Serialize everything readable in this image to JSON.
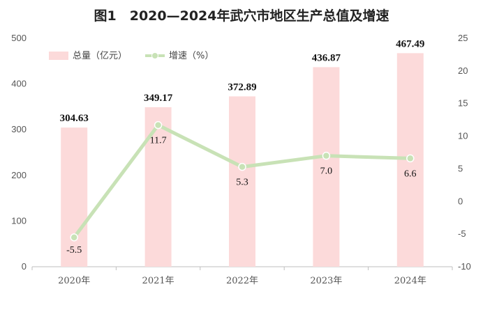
{
  "title": "图1　2020—2024年武穴市地区生产总值及增速",
  "chart_data": {
    "type": "bar",
    "categories": [
      "2020年",
      "2021年",
      "2022年",
      "2023年",
      "2024年"
    ],
    "series": [
      {
        "name": "总量（亿元）",
        "type": "bar",
        "axis": "left",
        "values": [
          304.63,
          349.17,
          372.89,
          436.87,
          467.49
        ],
        "labels": [
          "304.63",
          "349.17",
          "372.89",
          "436.87",
          "467.49"
        ]
      },
      {
        "name": "增速（%）",
        "type": "line",
        "axis": "right",
        "values": [
          -5.5,
          11.7,
          5.3,
          7.0,
          6.6
        ],
        "labels": [
          "-5.5",
          "11.7",
          "5.3",
          "7.0",
          "6.6"
        ]
      }
    ],
    "ylim_left": [
      0,
      500
    ],
    "yticks_left": [
      "0",
      "100",
      "200",
      "300",
      "400",
      "500"
    ],
    "ylim_right": [
      -10,
      25
    ],
    "yticks_right": [
      "-10",
      "-5",
      "0",
      "5",
      "10",
      "15",
      "20",
      "25"
    ],
    "legend_position": "top-left",
    "colors": {
      "bar": "#fcdada",
      "line": "#c8e2b6",
      "marker": "#c8e2b6"
    }
  }
}
